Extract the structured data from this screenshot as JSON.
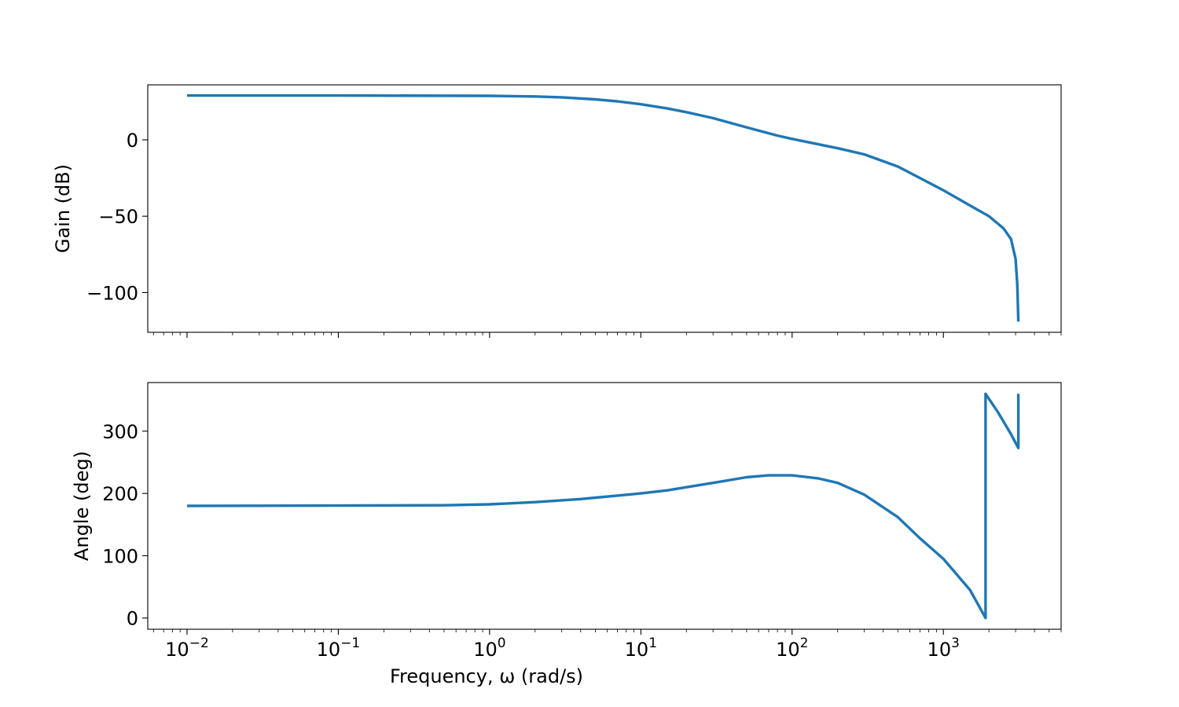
{
  "chart_data": [
    {
      "type": "line",
      "panel": "magnitude",
      "ylabel": "Gain (dB)",
      "xlabel": "",
      "xscale": "log",
      "xlim": [
        0.0055,
        6000
      ],
      "ylim": [
        -126,
        36
      ],
      "yticks": [
        {
          "value": 0,
          "label": "0"
        },
        {
          "value": -50,
          "label": "−50"
        },
        {
          "value": -100,
          "label": "−100"
        }
      ],
      "grid": false,
      "color": "#1f77b4",
      "series": [
        {
          "x": [
            0.01,
            0.1,
            1,
            2,
            3,
            5,
            7,
            10,
            15,
            20,
            30,
            50,
            80,
            100,
            200,
            300,
            500,
            700,
            1000,
            1500,
            2000,
            2500,
            2800,
            3000,
            3080,
            3130
          ],
          "values": [
            29,
            29,
            28.8,
            28.4,
            27.8,
            26.5,
            25.2,
            23.3,
            20.5,
            18.1,
            14.2,
            8.2,
            2.8,
            0.6,
            -5.5,
            -9.5,
            -17.5,
            -25,
            -33,
            -43,
            -50,
            -58,
            -65,
            -78,
            -95,
            -119
          ]
        }
      ]
    },
    {
      "type": "line",
      "panel": "phase",
      "ylabel": "Angle (deg)",
      "xlabel": "Frequency, ω (rad/s)",
      "xscale": "log",
      "xlim": [
        0.0055,
        6000
      ],
      "ylim": [
        -18,
        378
      ],
      "yticks": [
        {
          "value": 0,
          "label": "0"
        },
        {
          "value": 100,
          "label": "100"
        },
        {
          "value": 200,
          "label": "200"
        },
        {
          "value": 300,
          "label": "300"
        }
      ],
      "xticks": [
        {
          "value": 0.01,
          "base": "10",
          "exp": "−2"
        },
        {
          "value": 0.1,
          "base": "10",
          "exp": "−1"
        },
        {
          "value": 1,
          "base": "10",
          "exp": "0"
        },
        {
          "value": 10,
          "base": "10",
          "exp": "1"
        },
        {
          "value": 100,
          "base": "10",
          "exp": "2"
        },
        {
          "value": 1000,
          "base": "10",
          "exp": "3"
        }
      ],
      "grid": false,
      "color": "#1f77b4",
      "series": [
        {
          "x": [
            0.01,
            0.1,
            0.5,
            1,
            2,
            4,
            7,
            10,
            15,
            20,
            30,
            50,
            70,
            100,
            150,
            200,
            300,
            500,
            700,
            1000,
            1500,
            1900,
            1900.01,
            2300,
            2800,
            3130,
            3130.01
          ],
          "values": [
            180,
            180.5,
            181,
            182.5,
            186,
            191,
            196.5,
            200,
            205,
            210,
            217,
            226,
            229,
            229,
            224,
            217,
            198,
            162,
            128,
            95,
            45,
            0,
            360,
            330,
            295,
            273,
            360
          ]
        }
      ]
    }
  ]
}
